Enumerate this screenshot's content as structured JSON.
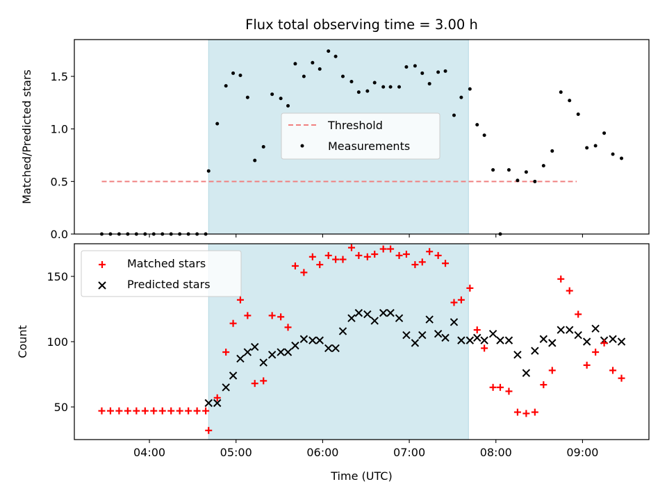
{
  "chart_data": {
    "title": "Flux total observing time = 3.00 h",
    "xlabel": "Time (UTC)",
    "x_ticks": [
      "04:00",
      "05:00",
      "06:00",
      "07:00",
      "08:00",
      "09:00"
    ],
    "shaded_interval": [
      "04:41",
      "07:41"
    ],
    "shaded_color": "#d4eaf0",
    "panels": [
      {
        "type": "scatter",
        "ylabel": "Matched/Predicted stars",
        "ylim": [
          0,
          1.85
        ],
        "y_ticks": [
          "0.0",
          "0.5",
          "1.0",
          "1.5"
        ],
        "threshold": {
          "label": "Threshold",
          "value": 0.5,
          "x_range": [
            "03:27",
            "08:56"
          ],
          "color": "#f08080"
        },
        "series": [
          {
            "name": "Measurements",
            "color": "#000000",
            "points": [
              [
                "03:27",
                0
              ],
              [
                "03:33",
                0
              ],
              [
                "03:39",
                0
              ],
              [
                "03:45",
                0
              ],
              [
                "03:51",
                0
              ],
              [
                "03:57",
                0
              ],
              [
                "04:03",
                0
              ],
              [
                "04:09",
                0
              ],
              [
                "04:15",
                0
              ],
              [
                "04:21",
                0
              ],
              [
                "04:27",
                0
              ],
              [
                "04:33",
                0
              ],
              [
                "04:39",
                0
              ],
              [
                "04:41",
                0.6
              ],
              [
                "04:47",
                1.05
              ],
              [
                "04:53",
                1.41
              ],
              [
                "04:58",
                1.53
              ],
              [
                "05:03",
                1.51
              ],
              [
                "05:08",
                1.3
              ],
              [
                "05:13",
                0.7
              ],
              [
                "05:19",
                0.83
              ],
              [
                "05:25",
                1.33
              ],
              [
                "05:31",
                1.29
              ],
              [
                "05:36",
                1.22
              ],
              [
                "05:41",
                1.62
              ],
              [
                "05:47",
                1.5
              ],
              [
                "05:53",
                1.63
              ],
              [
                "05:58",
                1.57
              ],
              [
                "06:04",
                1.74
              ],
              [
                "06:09",
                1.69
              ],
              [
                "06:14",
                1.5
              ],
              [
                "06:20",
                1.45
              ],
              [
                "06:25",
                1.35
              ],
              [
                "06:31",
                1.36
              ],
              [
                "06:36",
                1.44
              ],
              [
                "06:42",
                1.4
              ],
              [
                "06:47",
                1.4
              ],
              [
                "06:53",
                1.4
              ],
              [
                "06:58",
                1.59
              ],
              [
                "07:04",
                1.6
              ],
              [
                "07:09",
                1.53
              ],
              [
                "07:14",
                1.43
              ],
              [
                "07:20",
                1.54
              ],
              [
                "07:25",
                1.55
              ],
              [
                "07:31",
                1.13
              ],
              [
                "07:36",
                1.3
              ],
              [
                "07:42",
                1.38
              ],
              [
                "07:47",
                1.04
              ],
              [
                "07:52",
                0.94
              ],
              [
                "07:58",
                0.61
              ],
              [
                "08:03",
                0.0
              ],
              [
                "08:09",
                0.61
              ],
              [
                "08:15",
                0.51
              ],
              [
                "08:21",
                0.59
              ],
              [
                "08:27",
                0.5
              ],
              [
                "08:33",
                0.65
              ],
              [
                "08:39",
                0.79
              ],
              [
                "08:45",
                1.35
              ],
              [
                "08:51",
                1.27
              ],
              [
                "08:57",
                1.14
              ],
              [
                "09:03",
                0.82
              ],
              [
                "09:09",
                0.84
              ],
              [
                "09:15",
                0.96
              ],
              [
                "09:21",
                0.76
              ],
              [
                "09:27",
                0.72
              ]
            ]
          }
        ],
        "legend": {
          "placement": "upper center",
          "entries": [
            "Threshold",
            "Measurements"
          ]
        }
      },
      {
        "type": "scatter",
        "ylabel": "Count",
        "ylim": [
          25,
          175
        ],
        "y_ticks": [
          "50",
          "100",
          "150"
        ],
        "series": [
          {
            "name": "Matched stars",
            "color": "#ff0000",
            "marker": "+",
            "points": [
              [
                "03:27",
                47
              ],
              [
                "03:33",
                47
              ],
              [
                "03:39",
                47
              ],
              [
                "03:45",
                47
              ],
              [
                "03:51",
                47
              ],
              [
                "03:57",
                47
              ],
              [
                "04:03",
                47
              ],
              [
                "04:09",
                47
              ],
              [
                "04:15",
                47
              ],
              [
                "04:21",
                47
              ],
              [
                "04:27",
                47
              ],
              [
                "04:33",
                47
              ],
              [
                "04:39",
                47
              ],
              [
                "04:41",
                32
              ],
              [
                "04:47",
                57
              ],
              [
                "04:53",
                92
              ],
              [
                "04:58",
                114
              ],
              [
                "05:03",
                132
              ],
              [
                "05:08",
                120
              ],
              [
                "05:13",
                68
              ],
              [
                "05:19",
                70
              ],
              [
                "05:25",
                120
              ],
              [
                "05:31",
                119
              ],
              [
                "05:36",
                111
              ],
              [
                "05:41",
                158
              ],
              [
                "05:47",
                153
              ],
              [
                "05:53",
                165
              ],
              [
                "05:58",
                159
              ],
              [
                "06:04",
                166
              ],
              [
                "06:09",
                163
              ],
              [
                "06:14",
                163
              ],
              [
                "06:20",
                172
              ],
              [
                "06:25",
                166
              ],
              [
                "06:31",
                165
              ],
              [
                "06:36",
                167
              ],
              [
                "06:42",
                171
              ],
              [
                "06:47",
                171
              ],
              [
                "06:53",
                166
              ],
              [
                "06:58",
                167
              ],
              [
                "07:04",
                159
              ],
              [
                "07:09",
                161
              ],
              [
                "07:14",
                169
              ],
              [
                "07:20",
                166
              ],
              [
                "07:25",
                160
              ],
              [
                "07:31",
                130
              ],
              [
                "07:36",
                132
              ],
              [
                "07:42",
                141
              ],
              [
                "07:47",
                109
              ],
              [
                "07:52",
                95
              ],
              [
                "07:58",
                65
              ],
              [
                "08:03",
                65
              ],
              [
                "08:09",
                62
              ],
              [
                "08:15",
                46
              ],
              [
                "08:21",
                45
              ],
              [
                "08:27",
                46
              ],
              [
                "08:33",
                67
              ],
              [
                "08:39",
                78
              ],
              [
                "08:45",
                148
              ],
              [
                "08:51",
                139
              ],
              [
                "08:57",
                121
              ],
              [
                "09:03",
                82
              ],
              [
                "09:09",
                92
              ],
              [
                "09:15",
                99
              ],
              [
                "09:21",
                78
              ],
              [
                "09:27",
                72
              ]
            ]
          },
          {
            "name": "Predicted stars",
            "color": "#000000",
            "marker": "x",
            "points": [
              [
                "04:41",
                53
              ],
              [
                "04:47",
                53
              ],
              [
                "04:53",
                65
              ],
              [
                "04:58",
                74
              ],
              [
                "05:03",
                87
              ],
              [
                "05:08",
                92
              ],
              [
                "05:13",
                96
              ],
              [
                "05:19",
                84
              ],
              [
                "05:25",
                90
              ],
              [
                "05:31",
                92
              ],
              [
                "05:36",
                92
              ],
              [
                "05:41",
                97
              ],
              [
                "05:47",
                102
              ],
              [
                "05:53",
                101
              ],
              [
                "05:58",
                101
              ],
              [
                "06:04",
                95
              ],
              [
                "06:09",
                95
              ],
              [
                "06:14",
                108
              ],
              [
                "06:20",
                118
              ],
              [
                "06:25",
                122
              ],
              [
                "06:31",
                121
              ],
              [
                "06:36",
                116
              ],
              [
                "06:42",
                122
              ],
              [
                "06:47",
                122
              ],
              [
                "06:53",
                118
              ],
              [
                "06:58",
                105
              ],
              [
                "07:04",
                99
              ],
              [
                "07:09",
                105
              ],
              [
                "07:14",
                117
              ],
              [
                "07:20",
                106
              ],
              [
                "07:25",
                103
              ],
              [
                "07:31",
                115
              ],
              [
                "07:36",
                101
              ],
              [
                "07:42",
                101
              ],
              [
                "07:47",
                103
              ],
              [
                "07:52",
                101
              ],
              [
                "07:58",
                106
              ],
              [
                "08:03",
                101
              ],
              [
                "08:09",
                101
              ],
              [
                "08:15",
                90
              ],
              [
                "08:21",
                76
              ],
              [
                "08:27",
                93
              ],
              [
                "08:33",
                102
              ],
              [
                "08:39",
                99
              ],
              [
                "08:45",
                109
              ],
              [
                "08:51",
                109
              ],
              [
                "08:57",
                105
              ],
              [
                "09:03",
                100
              ],
              [
                "09:09",
                110
              ],
              [
                "09:15",
                101
              ],
              [
                "09:21",
                102
              ],
              [
                "09:27",
                100
              ]
            ]
          }
        ],
        "legend": {
          "placement": "upper left",
          "entries": [
            "Matched stars",
            "Predicted stars"
          ]
        }
      }
    ]
  }
}
